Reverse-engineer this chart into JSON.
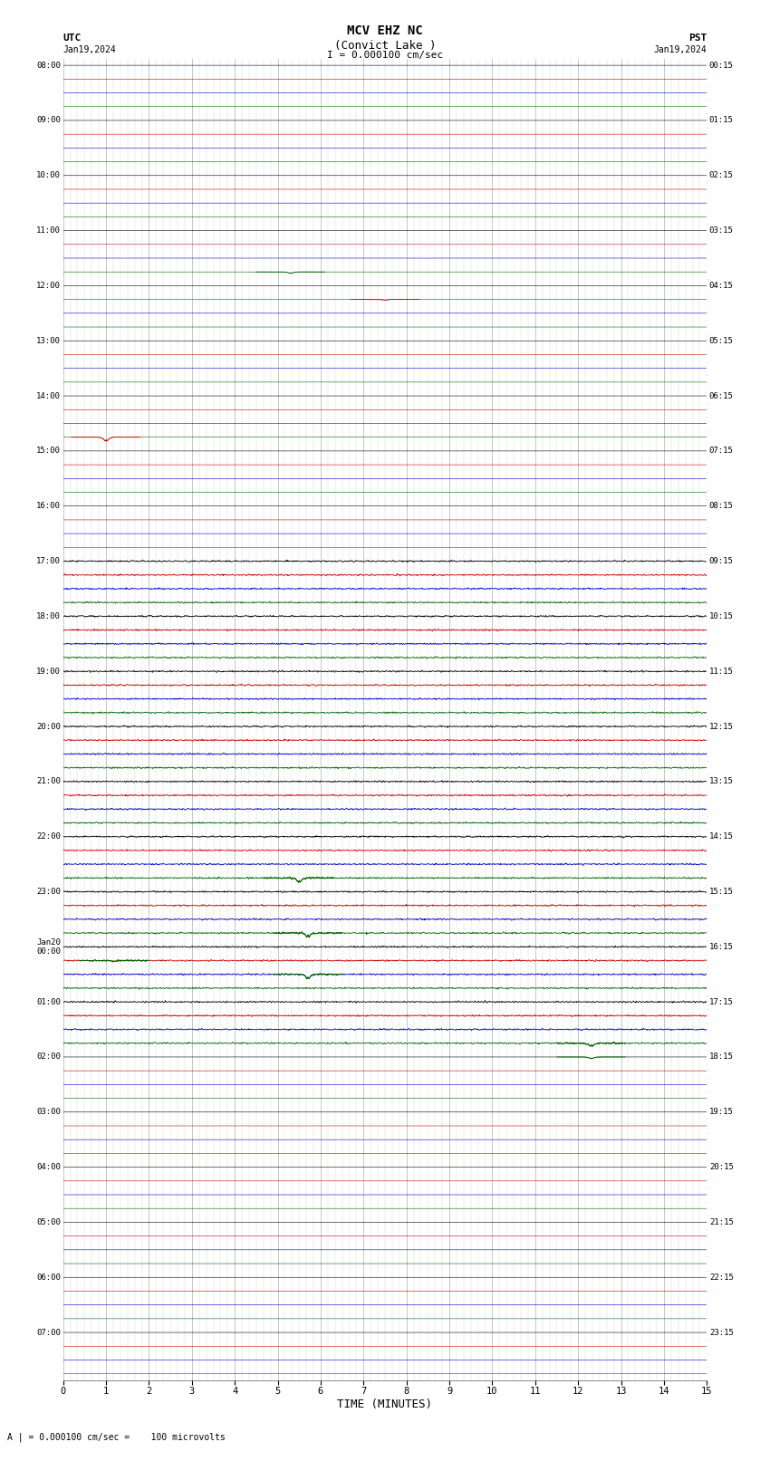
{
  "title_line1": "MCV EHZ NC",
  "title_line2": "(Convict Lake )",
  "title_line3": "I = 0.000100 cm/sec",
  "label_utc": "UTC",
  "label_pst": "PST",
  "date_left": "Jan19,2024",
  "date_right": "Jan19,2024",
  "xlabel": "TIME (MINUTES)",
  "footer": "A | = 0.000100 cm/sec =    100 microvolts",
  "bg_color": "#ffffff",
  "xmin": 0,
  "xmax": 15
}
